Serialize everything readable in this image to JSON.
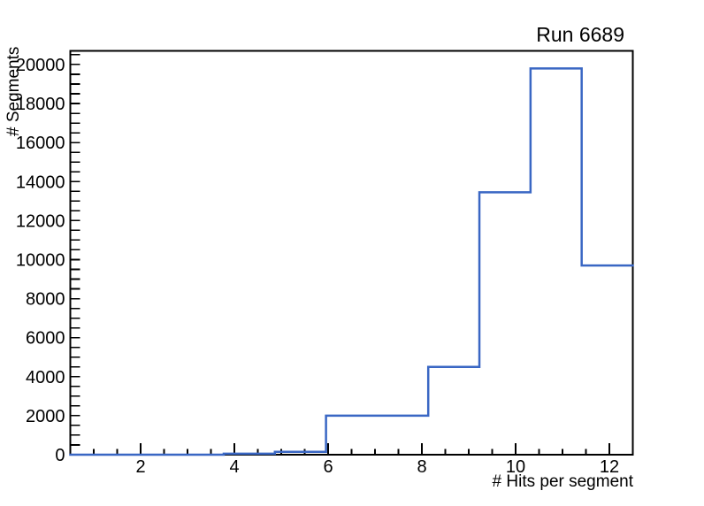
{
  "canvas": {
    "background": "#ffffff"
  },
  "chart_data": {
    "type": "histogram",
    "style": "step-outline",
    "title": "Run 6689",
    "xlabel": "# Hits per segment",
    "ylabel": "# Segments",
    "xlim": [
      0.5,
      12.5
    ],
    "ylim": [
      0,
      20700
    ],
    "n_bins": 11,
    "bin_edges": [
      0.5,
      1.591,
      2.682,
      3.773,
      4.864,
      5.955,
      7.045,
      8.136,
      9.227,
      10.318,
      11.409,
      12.5
    ],
    "values": [
      0,
      0,
      0,
      50,
      150,
      2000,
      2000,
      4500,
      13450,
      19800,
      9700
    ],
    "x_ticks": {
      "major_values": [
        2,
        4,
        6,
        8,
        10,
        12
      ],
      "major_labels": [
        "2",
        "4",
        "6",
        "8",
        "10",
        "12"
      ],
      "minor_step": 0.5
    },
    "y_ticks": {
      "major_values": [
        0,
        2000,
        4000,
        6000,
        8000,
        10000,
        12000,
        14000,
        16000,
        18000,
        20000
      ],
      "major_labels": [
        "0",
        "2000",
        "4000",
        "6000",
        "8000",
        "10000",
        "12000",
        "14000",
        "16000",
        "18000",
        "20000"
      ],
      "minor_step": 500
    },
    "grid": false,
    "legend": null,
    "colors": {
      "line": "#3A67C4",
      "frame": "#000000",
      "text": "#000000",
      "background": "#ffffff"
    }
  }
}
